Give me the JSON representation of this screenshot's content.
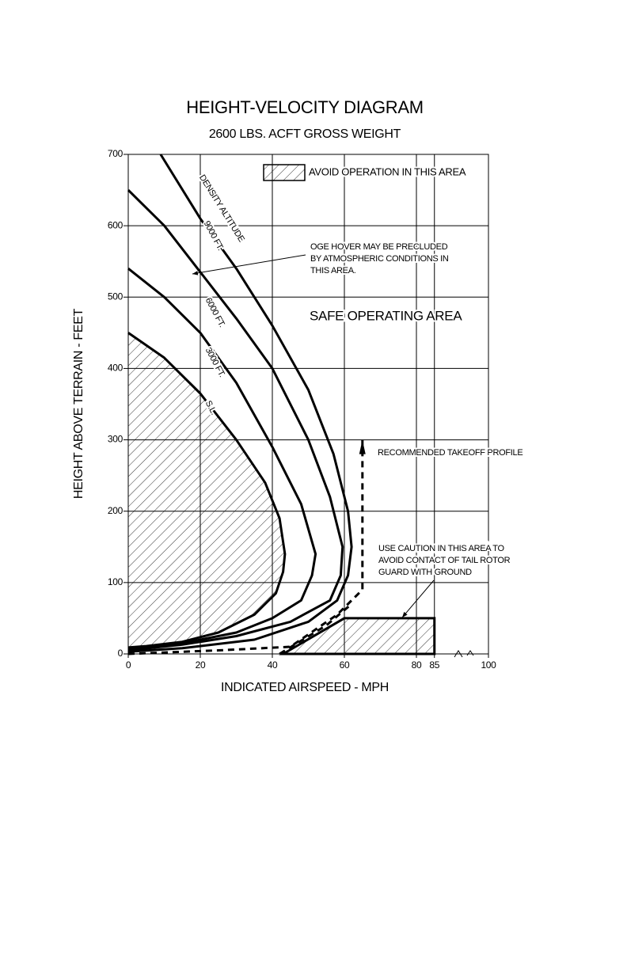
{
  "chart_data": {
    "type": "line",
    "title": "HEIGHT-VELOCITY DIAGRAM",
    "subtitle": "2600 LBS. ACFT GROSS WEIGHT",
    "xlabel": "INDICATED AIRSPEED - MPH",
    "ylabel": "HEIGHT ABOVE TERRAIN - FEET",
    "xlim": [
      0,
      100
    ],
    "ylim": [
      0,
      700
    ],
    "xticks": [
      0,
      20,
      40,
      60,
      80,
      85,
      100
    ],
    "yticks": [
      0,
      100,
      200,
      300,
      400,
      500,
      600,
      700
    ],
    "grid": true,
    "curve_group_label": "DENSITY ALTITUDE",
    "series": [
      {
        "name": "S.L.",
        "color": "#000000",
        "dashed": false,
        "x": [
          0,
          10,
          20,
          30,
          38,
          42,
          43.5,
          43,
          41,
          35,
          25,
          15,
          5,
          0
        ],
        "y": [
          450,
          415,
          365,
          300,
          240,
          190,
          140,
          115,
          85,
          55,
          30,
          17,
          11,
          9
        ]
      },
      {
        "name": "3000 FT.",
        "color": "#000000",
        "dashed": false,
        "x": [
          0,
          10,
          20,
          30,
          40,
          48,
          52,
          51,
          48,
          40,
          30,
          15,
          0
        ],
        "y": [
          540,
          500,
          450,
          380,
          290,
          210,
          140,
          110,
          75,
          50,
          30,
          15,
          7
        ]
      },
      {
        "name": "6000 FT.",
        "color": "#000000",
        "dashed": false,
        "x": [
          0,
          10,
          20,
          30,
          40,
          50,
          56,
          59.5,
          59,
          56,
          45,
          30,
          15,
          0
        ],
        "y": [
          650,
          600,
          535,
          470,
          400,
          300,
          220,
          150,
          110,
          75,
          45,
          25,
          13,
          5
        ]
      },
      {
        "name": "9000 FT.",
        "color": "#000000",
        "dashed": false,
        "x": [
          9,
          20,
          30,
          40,
          50,
          57,
          61,
          62,
          61,
          58,
          50,
          35,
          15,
          0
        ],
        "y": [
          700,
          610,
          540,
          460,
          370,
          280,
          200,
          150,
          110,
          75,
          45,
          20,
          8,
          3
        ]
      },
      {
        "name": "RECOMMENDED TAKEOFF PROFILE",
        "color": "#000000",
        "dashed": true,
        "x": [
          0,
          25,
          45,
          58,
          65,
          65,
          null,
          42,
          55,
          62
        ],
        "y": [
          0,
          5,
          10,
          55,
          90,
          300,
          null,
          0,
          40,
          70
        ]
      }
    ],
    "avoid_region": {
      "name": "AVOID OPERATION IN THIS AREA",
      "x": [
        43,
        60,
        85,
        85
      ],
      "y": [
        0,
        50,
        50,
        0
      ]
    },
    "annotations": [
      {
        "lines": [
          "OGE HOVER MAY BE PRECLUDED",
          "BY ATMOSPHERIC CONDITIONS IN",
          "THIS AREA."
        ]
      },
      {
        "lines": [
          "SAFE OPERATING AREA"
        ]
      },
      {
        "lines": [
          "USE CAUTION IN THIS AREA TO",
          "AVOID CONTACT OF TAIL ROTOR",
          "GUARD WITH GROUND"
        ]
      }
    ]
  }
}
